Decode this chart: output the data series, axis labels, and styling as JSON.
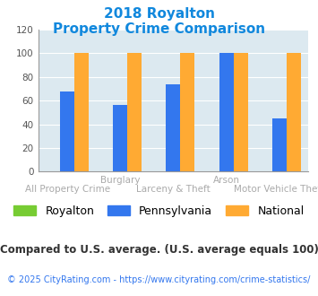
{
  "title_line1": "2018 Royalton",
  "title_line2": "Property Crime Comparison",
  "x_labels_top": [
    "",
    "Burglary",
    "",
    "Arson",
    ""
  ],
  "x_labels_bottom": [
    "All Property Crime",
    "",
    "Larceny & Theft",
    "",
    "Motor Vehicle Theft"
  ],
  "series": {
    "Royalton": [
      0,
      0,
      0,
      0,
      0
    ],
    "Pennsylvania": [
      68,
      56,
      74,
      100,
      45
    ],
    "National": [
      100,
      100,
      100,
      100,
      100
    ]
  },
  "colors": {
    "Royalton": "#77cc33",
    "Pennsylvania": "#3377ee",
    "National": "#ffaa33"
  },
  "ylim": [
    0,
    120
  ],
  "yticks": [
    0,
    20,
    40,
    60,
    80,
    100,
    120
  ],
  "title_color": "#1188dd",
  "axis_bg_color": "#dce9f0",
  "xlabel_color": "#aaaaaa",
  "legend_fontsize": 9,
  "footnote1": "Compared to U.S. average. (U.S. average equals 100)",
  "footnote2": "© 2025 CityRating.com - https://www.cityrating.com/crime-statistics/",
  "footnote1_color": "#333333",
  "footnote2_color": "#3377ee"
}
